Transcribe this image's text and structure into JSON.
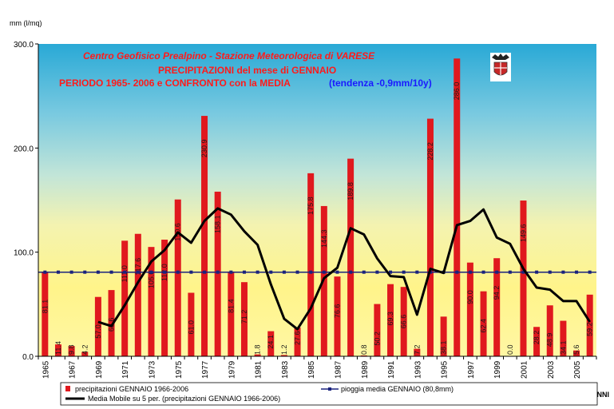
{
  "chart_data": {
    "type": "bar",
    "title_lines": [
      "Centro Geofisico Prealpino - Stazione Meteorologica di VARESE",
      "PRECIPITAZIONI del mese di GENNAIO",
      "PERIODO 1965- 2006 e CONFRONTO con la MEDIA"
    ],
    "trend_text": "(tendenza -0,9mm/10y)",
    "ylabel": "mm (l/mq)",
    "xlabel": "ANNI",
    "ylim": [
      0,
      300
    ],
    "yticks": [
      "0.0",
      "100.0",
      "200.0",
      "300.0"
    ],
    "xtick_labels": [
      "1965",
      "1967",
      "1969",
      "1971",
      "1973",
      "1975",
      "1977",
      "1979",
      "1981",
      "1983",
      "1985",
      "1987",
      "1989",
      "1991",
      "1993",
      "1995",
      "1997",
      "1999",
      "2001",
      "2003",
      "2005"
    ],
    "categories": [
      1965,
      1966,
      1967,
      1968,
      1969,
      1970,
      1971,
      1972,
      1973,
      1974,
      1975,
      1976,
      1977,
      1978,
      1979,
      1980,
      1981,
      1982,
      1983,
      1984,
      1985,
      1986,
      1987,
      1988,
      1989,
      1990,
      1991,
      1992,
      1993,
      1994,
      1995,
      1996,
      1997,
      1998,
      1999,
      2000,
      2001,
      2002,
      2003,
      2004,
      2005,
      2006
    ],
    "values": [
      81.1,
      11.4,
      9.8,
      4.2,
      57.0,
      63.6,
      111.0,
      117.6,
      105.0,
      112.0,
      150.6,
      61.0,
      230.9,
      158.1,
      81.4,
      71.2,
      1.8,
      24.1,
      1.2,
      27.6,
      175.8,
      144.3,
      76.6,
      189.8,
      0.8,
      50.2,
      69.3,
      66.6,
      7.2,
      228.2,
      38.1,
      286.0,
      90.0,
      62.4,
      94.2,
      0.0,
      149.6,
      28.2,
      48.9,
      34.1,
      5.6,
      59.2
    ],
    "data_labels": [
      "81.1",
      "11.4",
      "9.8",
      "4.2",
      "57.0",
      "63.6",
      "111.0",
      "117.6",
      "105.0",
      "112.0",
      "150.6",
      "61.0",
      "230.9",
      "158.1",
      "81.4",
      "71.2",
      "1.8",
      "24.1",
      "1.2",
      "27.6",
      "175.8",
      "144.3",
      "76.6",
      "189.8",
      "0.8",
      "50.2",
      "69.3",
      "66.6",
      "7.2",
      "228.2",
      "38.1",
      "286.0",
      "90.0",
      "62.4",
      "94.2",
      "0.0",
      "149.6",
      "28.2",
      "48.9",
      "34.1",
      "5.6",
      "59.2"
    ],
    "mean_value": 80.8,
    "moving_average": [
      null,
      null,
      null,
      null,
      33.0,
      29.0,
      49.0,
      71.0,
      91.0,
      102.0,
      119.0,
      109.0,
      130.0,
      142.0,
      136.0,
      120.0,
      107.0,
      69.0,
      36.0,
      26.0,
      46.0,
      75.0,
      85.0,
      123.0,
      117.0,
      94.0,
      77.0,
      76.0,
      40.0,
      84.0,
      80.0,
      126.0,
      130.0,
      141.0,
      114.0,
      108.0,
      84.0,
      66.0,
      64.0,
      53.0,
      53.0,
      33.0
    ],
    "series": [
      {
        "name": "precipitazioni GENNAIO 1966-2006",
        "kind": "bar",
        "color": "#e0191e"
      },
      {
        "name": "pioggia media GENNAIO (80,8mm)",
        "kind": "line",
        "color": "#1a237e"
      },
      {
        "name": "Media Mobile su 5 per. (precipitazioni GENNAIO 1966-2006)",
        "kind": "line",
        "color": "#000000"
      }
    ],
    "grid": false,
    "legend_position": "bottom"
  },
  "logo": {
    "icon": "varese-coat-of-arms-icon"
  }
}
